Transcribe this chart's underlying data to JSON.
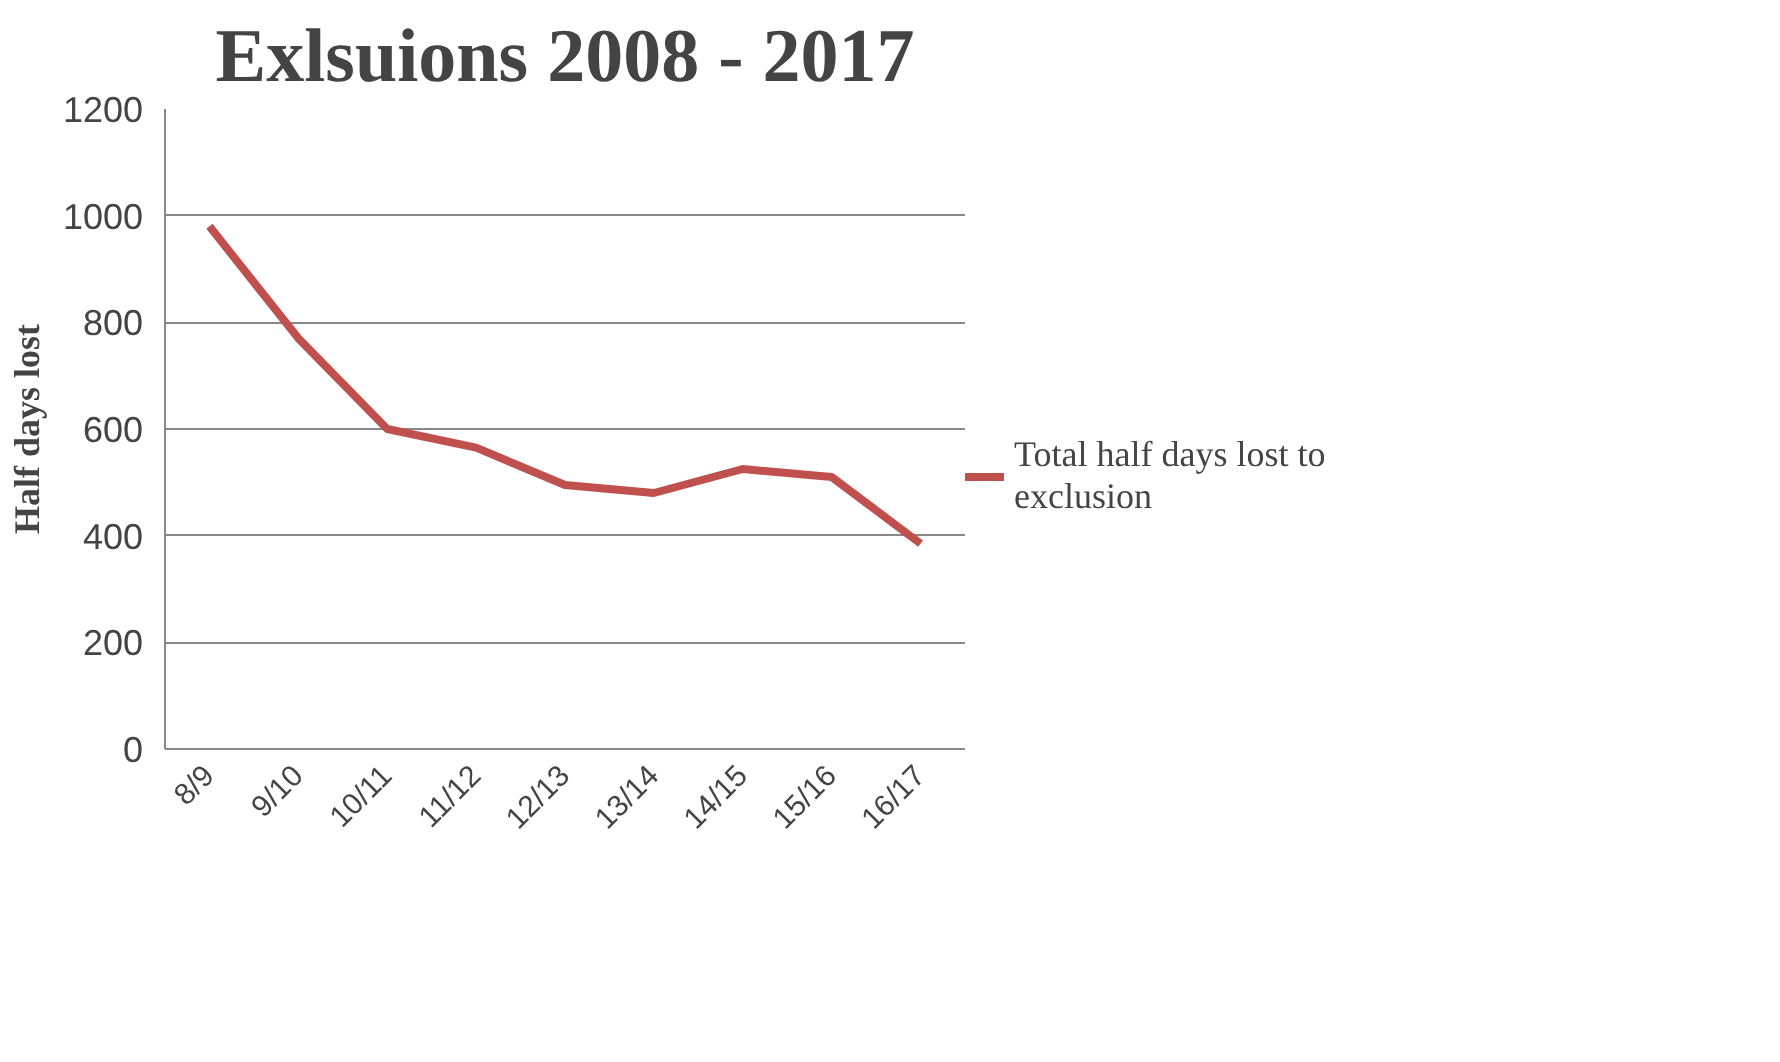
{
  "chart_data": {
    "type": "line",
    "title": "Exlsuions 2008 - 2017",
    "ylabel": "Half days lost",
    "categories": [
      "8/9",
      "9/10",
      "10/11",
      "11/12",
      "12/13",
      "13/14",
      "14/15",
      "15/16",
      "16/17"
    ],
    "series": [
      {
        "name": "Total half days lost to exclusion",
        "color": "#c0504d",
        "values": [
          980,
          770,
          600,
          565,
          495,
          480,
          525,
          510,
          385
        ]
      }
    ],
    "ylim": [
      0,
      1200
    ],
    "yticks": [
      0,
      200,
      400,
      600,
      800,
      1000,
      1200
    ],
    "grid": "y",
    "legend": "right",
    "marker": "none"
  }
}
